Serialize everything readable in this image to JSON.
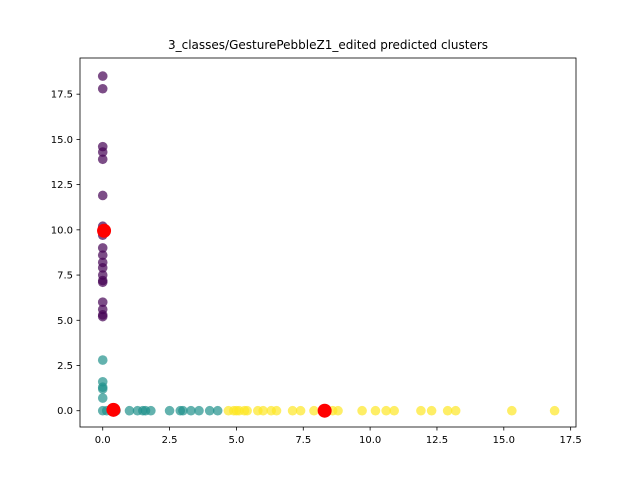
{
  "chart_data": {
    "type": "scatter",
    "title": "3_classes/GesturePebbleZ1_edited predicted clusters",
    "xlabel": "",
    "ylabel": "",
    "xlim": [
      -0.85,
      17.7
    ],
    "ylim": [
      -0.9,
      19.5
    ],
    "grid": false,
    "legend": "none",
    "xticks": [
      0.0,
      2.5,
      5.0,
      7.5,
      10.0,
      12.5,
      15.0,
      17.5
    ],
    "xtick_labels": [
      "0.0",
      "2.5",
      "5.0",
      "7.5",
      "10.0",
      "12.5",
      "15.0",
      "17.5"
    ],
    "yticks": [
      0.0,
      2.5,
      5.0,
      7.5,
      10.0,
      12.5,
      15.0,
      17.5
    ],
    "ytick_labels": [
      "0.0",
      "2.5",
      "5.0",
      "7.5",
      "10.0",
      "12.5",
      "15.0",
      "17.5"
    ],
    "series": [
      {
        "color": "#440154",
        "points": [
          [
            0.0,
            18.5
          ],
          [
            0.0,
            17.8
          ],
          [
            0.0,
            14.6
          ],
          [
            0.0,
            14.3
          ],
          [
            0.0,
            13.9
          ],
          [
            0.0,
            11.9
          ],
          [
            0.0,
            10.2
          ],
          [
            0.0,
            9.9
          ],
          [
            0.0,
            9.7
          ],
          [
            0.0,
            9.0
          ],
          [
            0.0,
            8.6
          ],
          [
            0.0,
            8.2
          ],
          [
            0.0,
            7.9
          ],
          [
            0.0,
            7.5
          ],
          [
            0.0,
            7.2
          ],
          [
            0.0,
            7.1
          ],
          [
            0.0,
            6.0
          ],
          [
            0.0,
            5.6
          ],
          [
            0.0,
            5.3
          ],
          [
            0.0,
            5.2
          ]
        ]
      },
      {
        "color": "#21918c",
        "points": [
          [
            0.0,
            2.8
          ],
          [
            0.0,
            1.6
          ],
          [
            0.0,
            1.3
          ],
          [
            0.0,
            1.2
          ],
          [
            0.0,
            0.7
          ],
          [
            0.0,
            0.0
          ],
          [
            0.15,
            0.0
          ],
          [
            0.5,
            0.0
          ],
          [
            1.0,
            0.0
          ],
          [
            1.3,
            0.0
          ],
          [
            1.5,
            0.0
          ],
          [
            1.6,
            0.0
          ],
          [
            1.8,
            0.0
          ],
          [
            2.5,
            0.0
          ],
          [
            2.9,
            0.0
          ],
          [
            3.0,
            0.0
          ],
          [
            3.3,
            0.0
          ],
          [
            3.6,
            0.0
          ],
          [
            4.0,
            0.0
          ],
          [
            4.3,
            0.0
          ]
        ]
      },
      {
        "color": "#fde725",
        "points": [
          [
            4.7,
            0.0
          ],
          [
            4.9,
            0.0
          ],
          [
            5.0,
            0.0
          ],
          [
            5.1,
            0.0
          ],
          [
            5.3,
            0.0
          ],
          [
            5.4,
            0.0
          ],
          [
            5.8,
            0.0
          ],
          [
            6.0,
            0.0
          ],
          [
            6.3,
            0.0
          ],
          [
            6.5,
            0.0
          ],
          [
            7.1,
            0.0
          ],
          [
            7.4,
            0.0
          ],
          [
            7.9,
            0.0
          ],
          [
            8.3,
            0.0
          ],
          [
            8.6,
            0.0
          ],
          [
            8.8,
            0.0
          ],
          [
            9.7,
            0.0
          ],
          [
            10.2,
            0.0
          ],
          [
            10.6,
            0.0
          ],
          [
            10.9,
            0.0
          ],
          [
            11.9,
            0.0
          ],
          [
            12.3,
            0.0
          ],
          [
            12.9,
            0.0
          ],
          [
            13.2,
            0.0
          ],
          [
            15.3,
            0.0
          ],
          [
            16.9,
            0.0
          ]
        ]
      }
    ],
    "centroids": {
      "color": "#ff0000",
      "points": [
        [
          0.05,
          9.95
        ],
        [
          0.4,
          0.05
        ],
        [
          8.3,
          0.0
        ]
      ]
    }
  }
}
